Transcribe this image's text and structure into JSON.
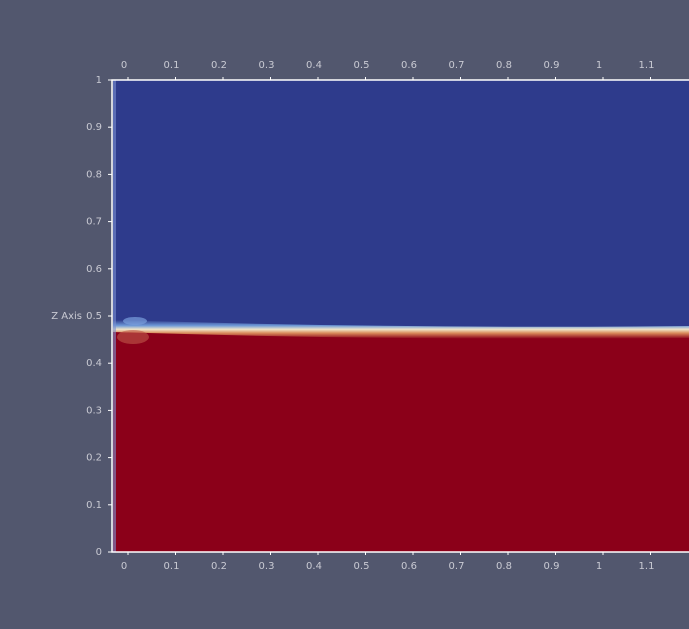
{
  "axes": {
    "y_title": "Z Axis",
    "xticks": [
      0,
      0.1,
      0.2,
      0.3,
      0.4,
      0.5,
      0.6,
      0.7,
      0.8,
      0.9,
      1,
      1.1
    ],
    "yticks": [
      0,
      0.1,
      0.2,
      0.3,
      0.4,
      0.5,
      0.6,
      0.7,
      0.8,
      0.9,
      1
    ]
  }
}
